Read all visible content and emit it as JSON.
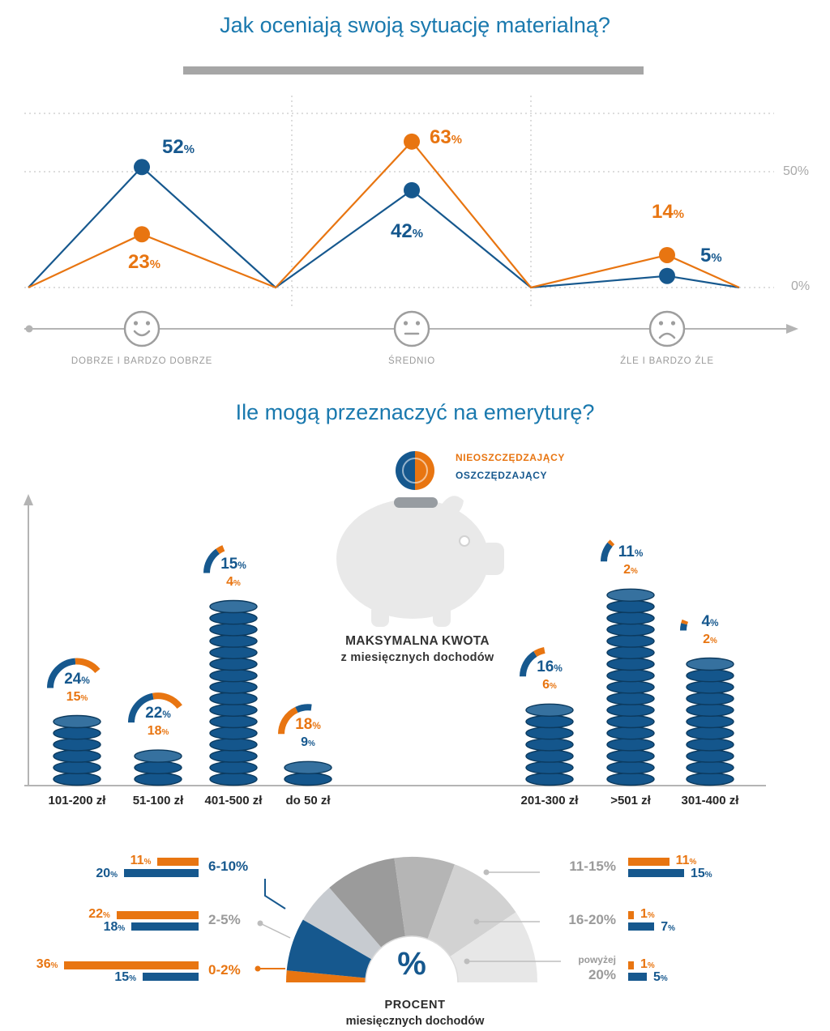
{
  "colors": {
    "blue": "#16588e",
    "orange": "#e87511",
    "title_blue": "#1a79ae",
    "gray": "#9a9a9a",
    "axis_gray": "#b4b4b4",
    "dark_text": "#2b2b2b",
    "pig_gray": "#e9e9e9"
  },
  "section1": {
    "title": "Jak oceniają swoją sytuację materialną?",
    "y_axis": {
      "top": "50%",
      "bottom": "0%"
    },
    "categories": [
      {
        "label": "DOBRZE I BARDZO DOBRZE",
        "face": "happy",
        "blue": 52,
        "orange": 23
      },
      {
        "label": "ŚREDNIO",
        "face": "neutral",
        "blue": 42,
        "orange": 63
      },
      {
        "label": "ŹLE I BARDZO ŹLE",
        "face": "sad",
        "blue": 5,
        "orange": 14
      }
    ]
  },
  "section2": {
    "title": "Ile mogą przeznaczyć na emeryturę?",
    "legend": [
      {
        "label": "NIEOSZCZĘDZAJĄCY",
        "color": "#e87511"
      },
      {
        "label": "OSZCZĘDZAJĄCY",
        "color": "#16588e"
      }
    ],
    "note_line1": "MAKSYMALNA KWOTA",
    "note_line2": "z miesięcznych dochodów",
    "bars": [
      {
        "label": "101-200 zł",
        "blue": 24,
        "orange": 15,
        "coins": 6
      },
      {
        "label": "51-100 zł",
        "blue": 22,
        "orange": 18,
        "coins": 3
      },
      {
        "label": "401-500 zł",
        "blue": 15,
        "orange": 4,
        "coins": 16
      },
      {
        "label": "do 50 zł",
        "blue": 9,
        "orange": 18,
        "coins": 2
      },
      {
        "label": "201-300 zł",
        "blue": 16,
        "orange": 6,
        "coins": 7
      },
      {
        "label": ">501 zł",
        "blue": 11,
        "orange": 2,
        "coins": 17
      },
      {
        "label": "301-400 zł",
        "blue": 4,
        "orange": 2,
        "coins": 11
      }
    ]
  },
  "section3": {
    "center_label": "%",
    "caption_line1": "PROCENT",
    "caption_line2": "miesięcznych dochodów",
    "left_rows": [
      {
        "label": "6-10%",
        "label_color": "blue",
        "orange": 11,
        "blue": 20
      },
      {
        "label": "2-5%",
        "label_color": "gray",
        "orange": 22,
        "blue": 18
      },
      {
        "label": "0-2%",
        "label_color": "orange",
        "orange": 36,
        "blue": 15
      }
    ],
    "right_rows": [
      {
        "label": "11-15%",
        "orange": 11,
        "blue": 15
      },
      {
        "label": "16-20%",
        "orange": 1,
        "blue": 7
      },
      {
        "label": "powyżej 20%",
        "label_small": "powyżej",
        "label_big": "20%",
        "orange": 1,
        "blue": 5
      }
    ]
  },
  "chart_data": [
    {
      "type": "line",
      "title": "Jak oceniają swoją sytuację materialną?",
      "categories": [
        "DOBRZE I BARDZO DOBRZE",
        "ŚREDNIO",
        "ŹLE I BARDZO ŹLE"
      ],
      "series": [
        {
          "name": "OSZCZĘDZAJĄCY",
          "color": "#16588e",
          "values": [
            52,
            42,
            5
          ]
        },
        {
          "name": "NIEOSZCZĘDZAJĄCY",
          "color": "#e87511",
          "values": [
            23,
            63,
            14
          ]
        }
      ],
      "ylim": [
        0,
        70
      ],
      "yticks": [
        0,
        50
      ],
      "unit": "%",
      "grid": "dotted"
    },
    {
      "type": "bar",
      "title": "Ile mogą przeznaczyć na emeryturę?",
      "subtitle": "MAKSYMALNA KWOTA z miesięcznych dochodów",
      "categories": [
        "101-200 zł",
        "51-100 zł",
        "401-500 zł",
        "do 50 zł",
        "201-300 zł",
        ">501 zł",
        "301-400 zł"
      ],
      "series": [
        {
          "name": "OSZCZĘDZAJĄCY",
          "color": "#16588e",
          "values": [
            24,
            22,
            15,
            9,
            16,
            11,
            4
          ]
        },
        {
          "name": "NIEOSZCZĘDZAJĄCY",
          "color": "#e87511",
          "values": [
            15,
            18,
            4,
            18,
            6,
            2,
            2
          ]
        }
      ],
      "unit": "%"
    },
    {
      "type": "bar",
      "title": "PROCENT miesięcznych dochodów",
      "categories": [
        "0-2%",
        "2-5%",
        "6-10%",
        "11-15%",
        "16-20%",
        "powyżej 20%"
      ],
      "series": [
        {
          "name": "NIEOSZCZĘDZAJĄCY",
          "color": "#e87511",
          "values": [
            36,
            22,
            11,
            11,
            1,
            1
          ]
        },
        {
          "name": "OSZCZĘDZAJĄCY",
          "color": "#16588e",
          "values": [
            15,
            18,
            20,
            15,
            7,
            5
          ]
        }
      ],
      "unit": "%"
    }
  ]
}
